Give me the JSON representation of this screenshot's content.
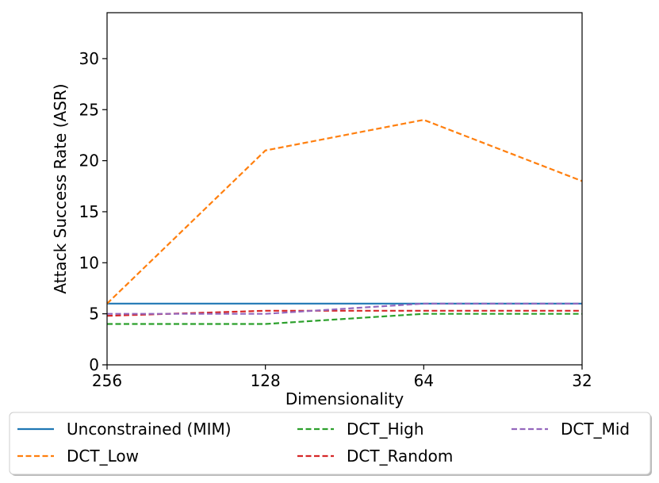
{
  "chart_data": {
    "type": "line",
    "xlabel": "Dimensionality",
    "ylabel": "Attack Success Rate (ASR)",
    "categories": [
      "256",
      "128",
      "64",
      "32"
    ],
    "ylim": [
      0,
      34.5
    ],
    "yticks": [
      0,
      5,
      10,
      15,
      20,
      25,
      30
    ],
    "grid": false,
    "legend_placement": "bottom, below plot, 3 columns",
    "series": [
      {
        "name": "Unconstrained (MIM)",
        "values": [
          6,
          6,
          6,
          6
        ],
        "color": "#1f77b4",
        "dashed": false
      },
      {
        "name": "DCT_Low",
        "values": [
          6,
          21,
          24,
          18
        ],
        "color": "#ff7f0e",
        "dashed": true
      },
      {
        "name": "DCT_High",
        "values": [
          4,
          4,
          5,
          5
        ],
        "color": "#2ca02c",
        "dashed": true
      },
      {
        "name": "DCT_Random",
        "values": [
          4.8,
          5.3,
          5.3,
          5.3
        ],
        "color": "#d62728",
        "dashed": true
      },
      {
        "name": "DCT_Mid",
        "values": [
          5,
          5,
          6,
          6
        ],
        "color": "#9467bd",
        "dashed": true
      }
    ]
  }
}
